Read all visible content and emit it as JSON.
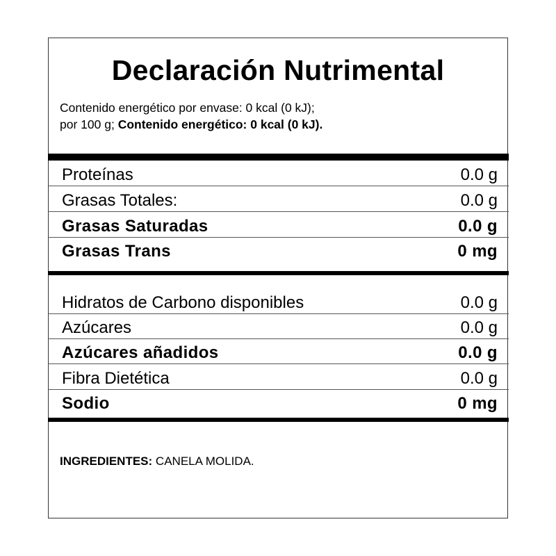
{
  "title": "Declaración Nutrimental",
  "energy": {
    "line1": "Contenido energético por envase: 0 kcal (0 kJ);",
    "line2_prefix": "por 100 g;",
    "line2_bold": "Contenido energético: 0 kcal (0 kJ)."
  },
  "nutrients_top": [
    {
      "label": "Proteínas",
      "value": "0.0 g",
      "bold": false
    },
    {
      "label": "Grasas Totales:",
      "value": "0.0 g",
      "bold": false
    },
    {
      "label": "Grasas Saturadas",
      "value": "0.0 g",
      "bold": true
    },
    {
      "label": "Grasas Trans",
      "value": "0 mg",
      "bold": true
    }
  ],
  "nutrients_bottom": [
    {
      "label": "Hidratos de Carbono disponibles",
      "value": "0.0 g",
      "bold": false
    },
    {
      "label": "Azúcares",
      "value": "0.0 g",
      "bold": false
    },
    {
      "label": "Azúcares añadidos",
      "value": "0.0 g",
      "bold": true
    },
    {
      "label": "Fibra Dietética",
      "value": "0.0 g",
      "bold": false
    },
    {
      "label": "Sodio",
      "value": "0 mg",
      "bold": true
    }
  ],
  "ingredients": {
    "label": "INGREDIENTES:",
    "value": "CANELA MOLIDA."
  }
}
